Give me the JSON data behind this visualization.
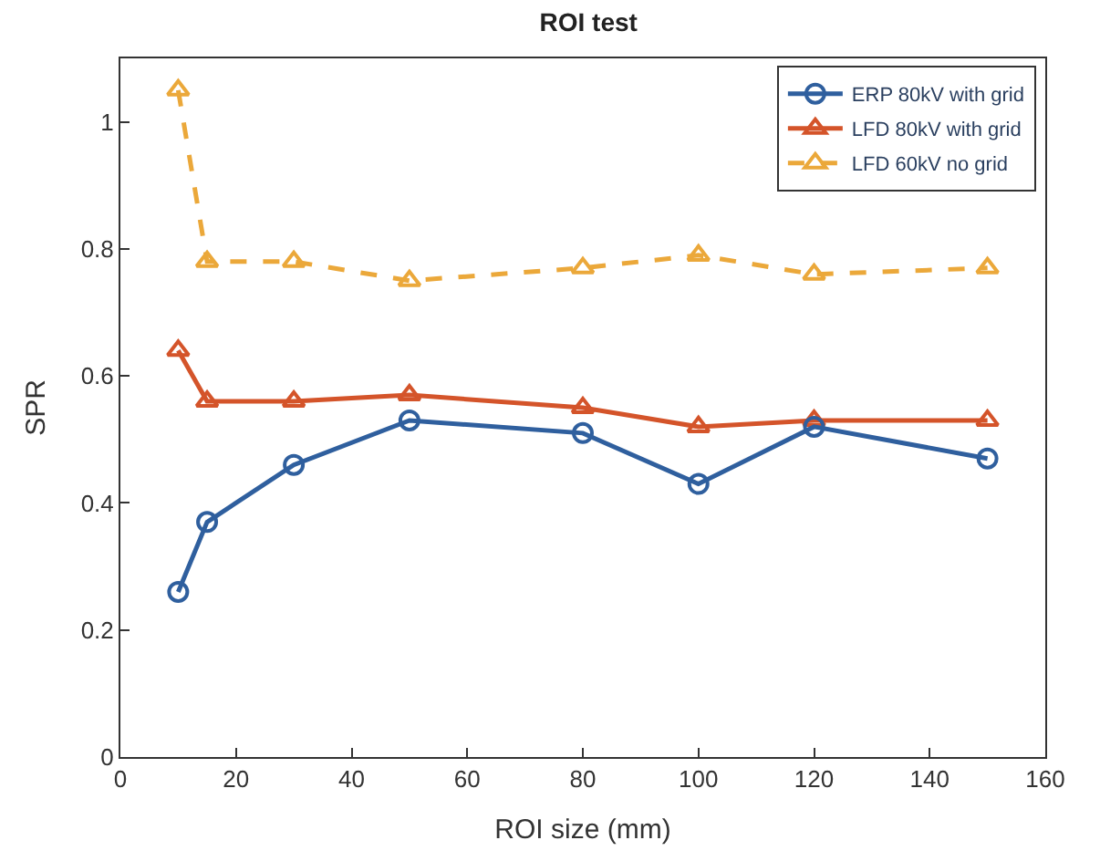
{
  "chart_data": {
    "type": "line",
    "title": "ROI test",
    "xlabel": "ROI size (mm)",
    "ylabel": "SPR",
    "x": [
      10,
      15,
      30,
      50,
      80,
      100,
      120,
      150
    ],
    "series": [
      {
        "name": "ERP 80kV with grid",
        "color": "#2f5f9e",
        "marker": "circle",
        "line_style": "solid",
        "values": [
          0.26,
          0.37,
          0.46,
          0.53,
          0.51,
          0.43,
          0.52,
          0.47
        ]
      },
      {
        "name": "LFD 80kV with grid",
        "color": "#d4542a",
        "marker": "triangle",
        "line_style": "solid",
        "values": [
          0.64,
          0.56,
          0.56,
          0.57,
          0.55,
          0.52,
          0.53,
          0.53
        ]
      },
      {
        "name": "LFD 60kV no grid",
        "color": "#eba83a",
        "marker": "triangle",
        "line_style": "dashed",
        "values": [
          1.05,
          0.78,
          0.78,
          0.75,
          0.77,
          0.79,
          0.76,
          0.77
        ]
      }
    ],
    "xlim": [
      0,
      160
    ],
    "xticks": [
      0,
      20,
      40,
      60,
      80,
      100,
      120,
      140,
      160
    ],
    "ylim": [
      0,
      1.1
    ],
    "yticks": [
      0,
      0.2,
      0.4,
      0.6,
      0.8,
      1
    ],
    "legend": "top right"
  }
}
